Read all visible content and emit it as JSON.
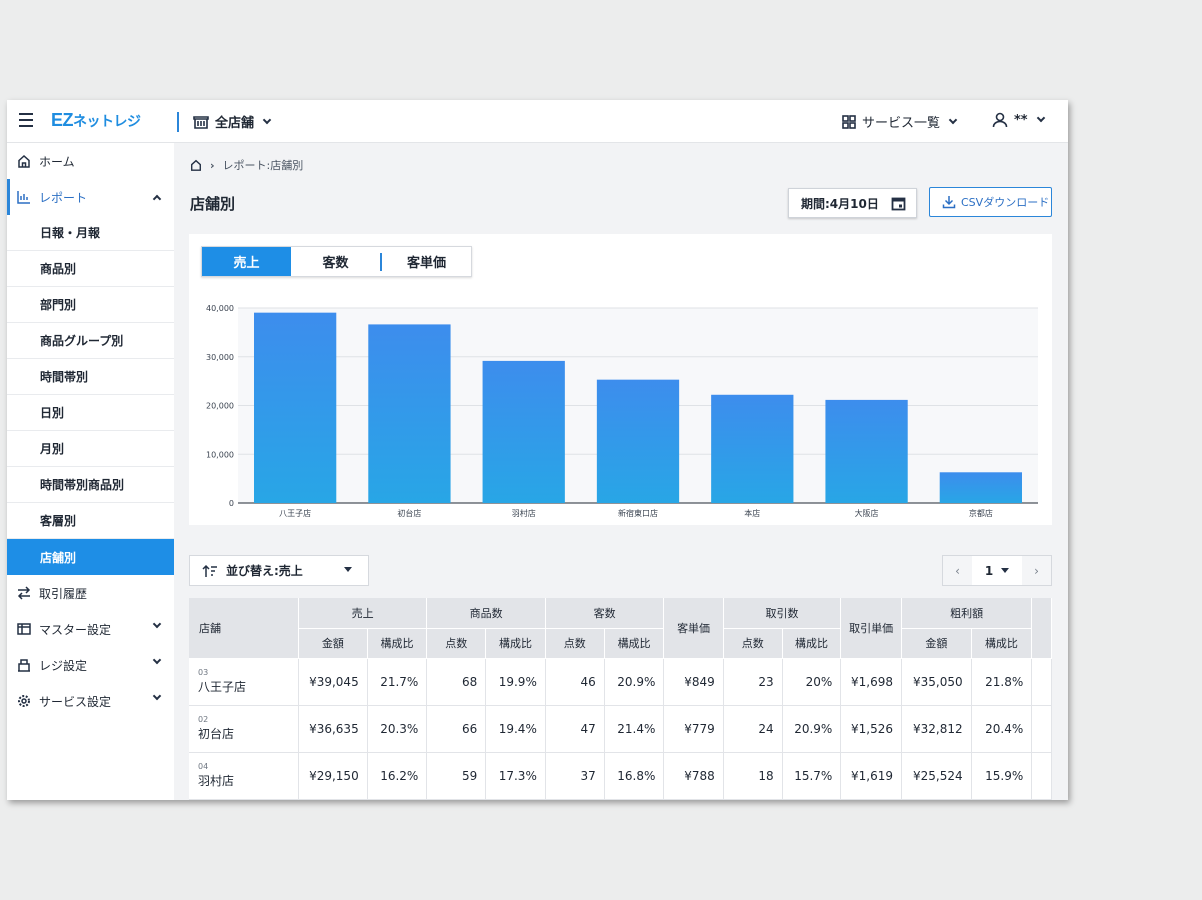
{
  "header": {
    "logo": "EZネットレジ",
    "logo_ez": "EZ",
    "logo_net": "ネットレジ",
    "store_selector": "全店舗",
    "service_list": "サービス一覧",
    "user": "**"
  },
  "sidebar": {
    "home": "ホーム",
    "report": "レポート",
    "report_items": [
      "日報・月報",
      "商品別",
      "部門別",
      "商品グループ別",
      "時間帯別",
      "日別",
      "月別",
      "時間帯別商品別",
      "客層別",
      "店舗別"
    ],
    "active_report_item": "店舗別",
    "transactions": "取引履歴",
    "master_settings": "マスター設定",
    "register_settings": "レジ設定",
    "service_settings": "サービス設定"
  },
  "breadcrumb": {
    "path": "レポート:店舗別"
  },
  "page": {
    "title": "店舗別",
    "period_label": "期間:4月10日",
    "csv_label": "CSVダウンロード"
  },
  "tabs": [
    "売上",
    "客数",
    "客単価"
  ],
  "active_tab": "売上",
  "chart_data": {
    "type": "bar",
    "categories": [
      "八王子店",
      "初台店",
      "羽村店",
      "新宿東口店",
      "本店",
      "大阪店",
      "京都店"
    ],
    "values": [
      39045,
      36635,
      29150,
      25300,
      22200,
      21150,
      6300
    ],
    "y_ticks": [
      "40,000",
      "30,000",
      "20,000",
      "10,000",
      "0"
    ],
    "ylim": [
      0,
      40000
    ],
    "grid": true,
    "color": "#3b8fe8"
  },
  "controls": {
    "sort_label": "並び替え:売上",
    "page_number": "1"
  },
  "table": {
    "col_store": "店舗",
    "groups": [
      "売上",
      "商品数",
      "客数",
      "客単価",
      "取引数",
      "取引単価",
      "粗利額"
    ],
    "sub_headers": {
      "sales": [
        "金額",
        "構成比"
      ],
      "items": [
        "点数",
        "構成比"
      ],
      "customers": [
        "点数",
        "構成比"
      ],
      "transactions": [
        "点数",
        "構成比"
      ],
      "profit": [
        "金額",
        "構成比"
      ]
    },
    "rows": [
      {
        "code": "03",
        "name": "八王子店",
        "sales": "¥39,045",
        "sales_ratio": "21.7%",
        "items": "68",
        "items_ratio": "19.9%",
        "customers": "46",
        "customers_ratio": "20.9%",
        "avg_spend": "¥849",
        "tx": "23",
        "tx_ratio": "20%",
        "tx_avg": "¥1,698",
        "profit": "¥35,050",
        "profit_ratio": "21.8%"
      },
      {
        "code": "02",
        "name": "初台店",
        "sales": "¥36,635",
        "sales_ratio": "20.3%",
        "items": "66",
        "items_ratio": "19.4%",
        "customers": "47",
        "customers_ratio": "21.4%",
        "avg_spend": "¥779",
        "tx": "24",
        "tx_ratio": "20.9%",
        "tx_avg": "¥1,526",
        "profit": "¥32,812",
        "profit_ratio": "20.4%"
      },
      {
        "code": "04",
        "name": "羽村店",
        "sales": "¥29,150",
        "sales_ratio": "16.2%",
        "items": "59",
        "items_ratio": "17.3%",
        "customers": "37",
        "customers_ratio": "16.8%",
        "avg_spend": "¥788",
        "tx": "18",
        "tx_ratio": "15.7%",
        "tx_avg": "¥1,619",
        "profit": "¥25,524",
        "profit_ratio": "15.9%"
      }
    ]
  },
  "icons": {
    "menu": "menu-icon",
    "store": "store-icon",
    "grid": "grid-icon",
    "user": "user-icon",
    "home": "home-icon",
    "report": "bar-chart-icon",
    "transactions": "swap-icon",
    "master": "master-icon",
    "register": "register-icon",
    "settings": "gear-icon",
    "calendar": "calendar-icon",
    "download": "download-icon",
    "sort": "sort-icon"
  }
}
